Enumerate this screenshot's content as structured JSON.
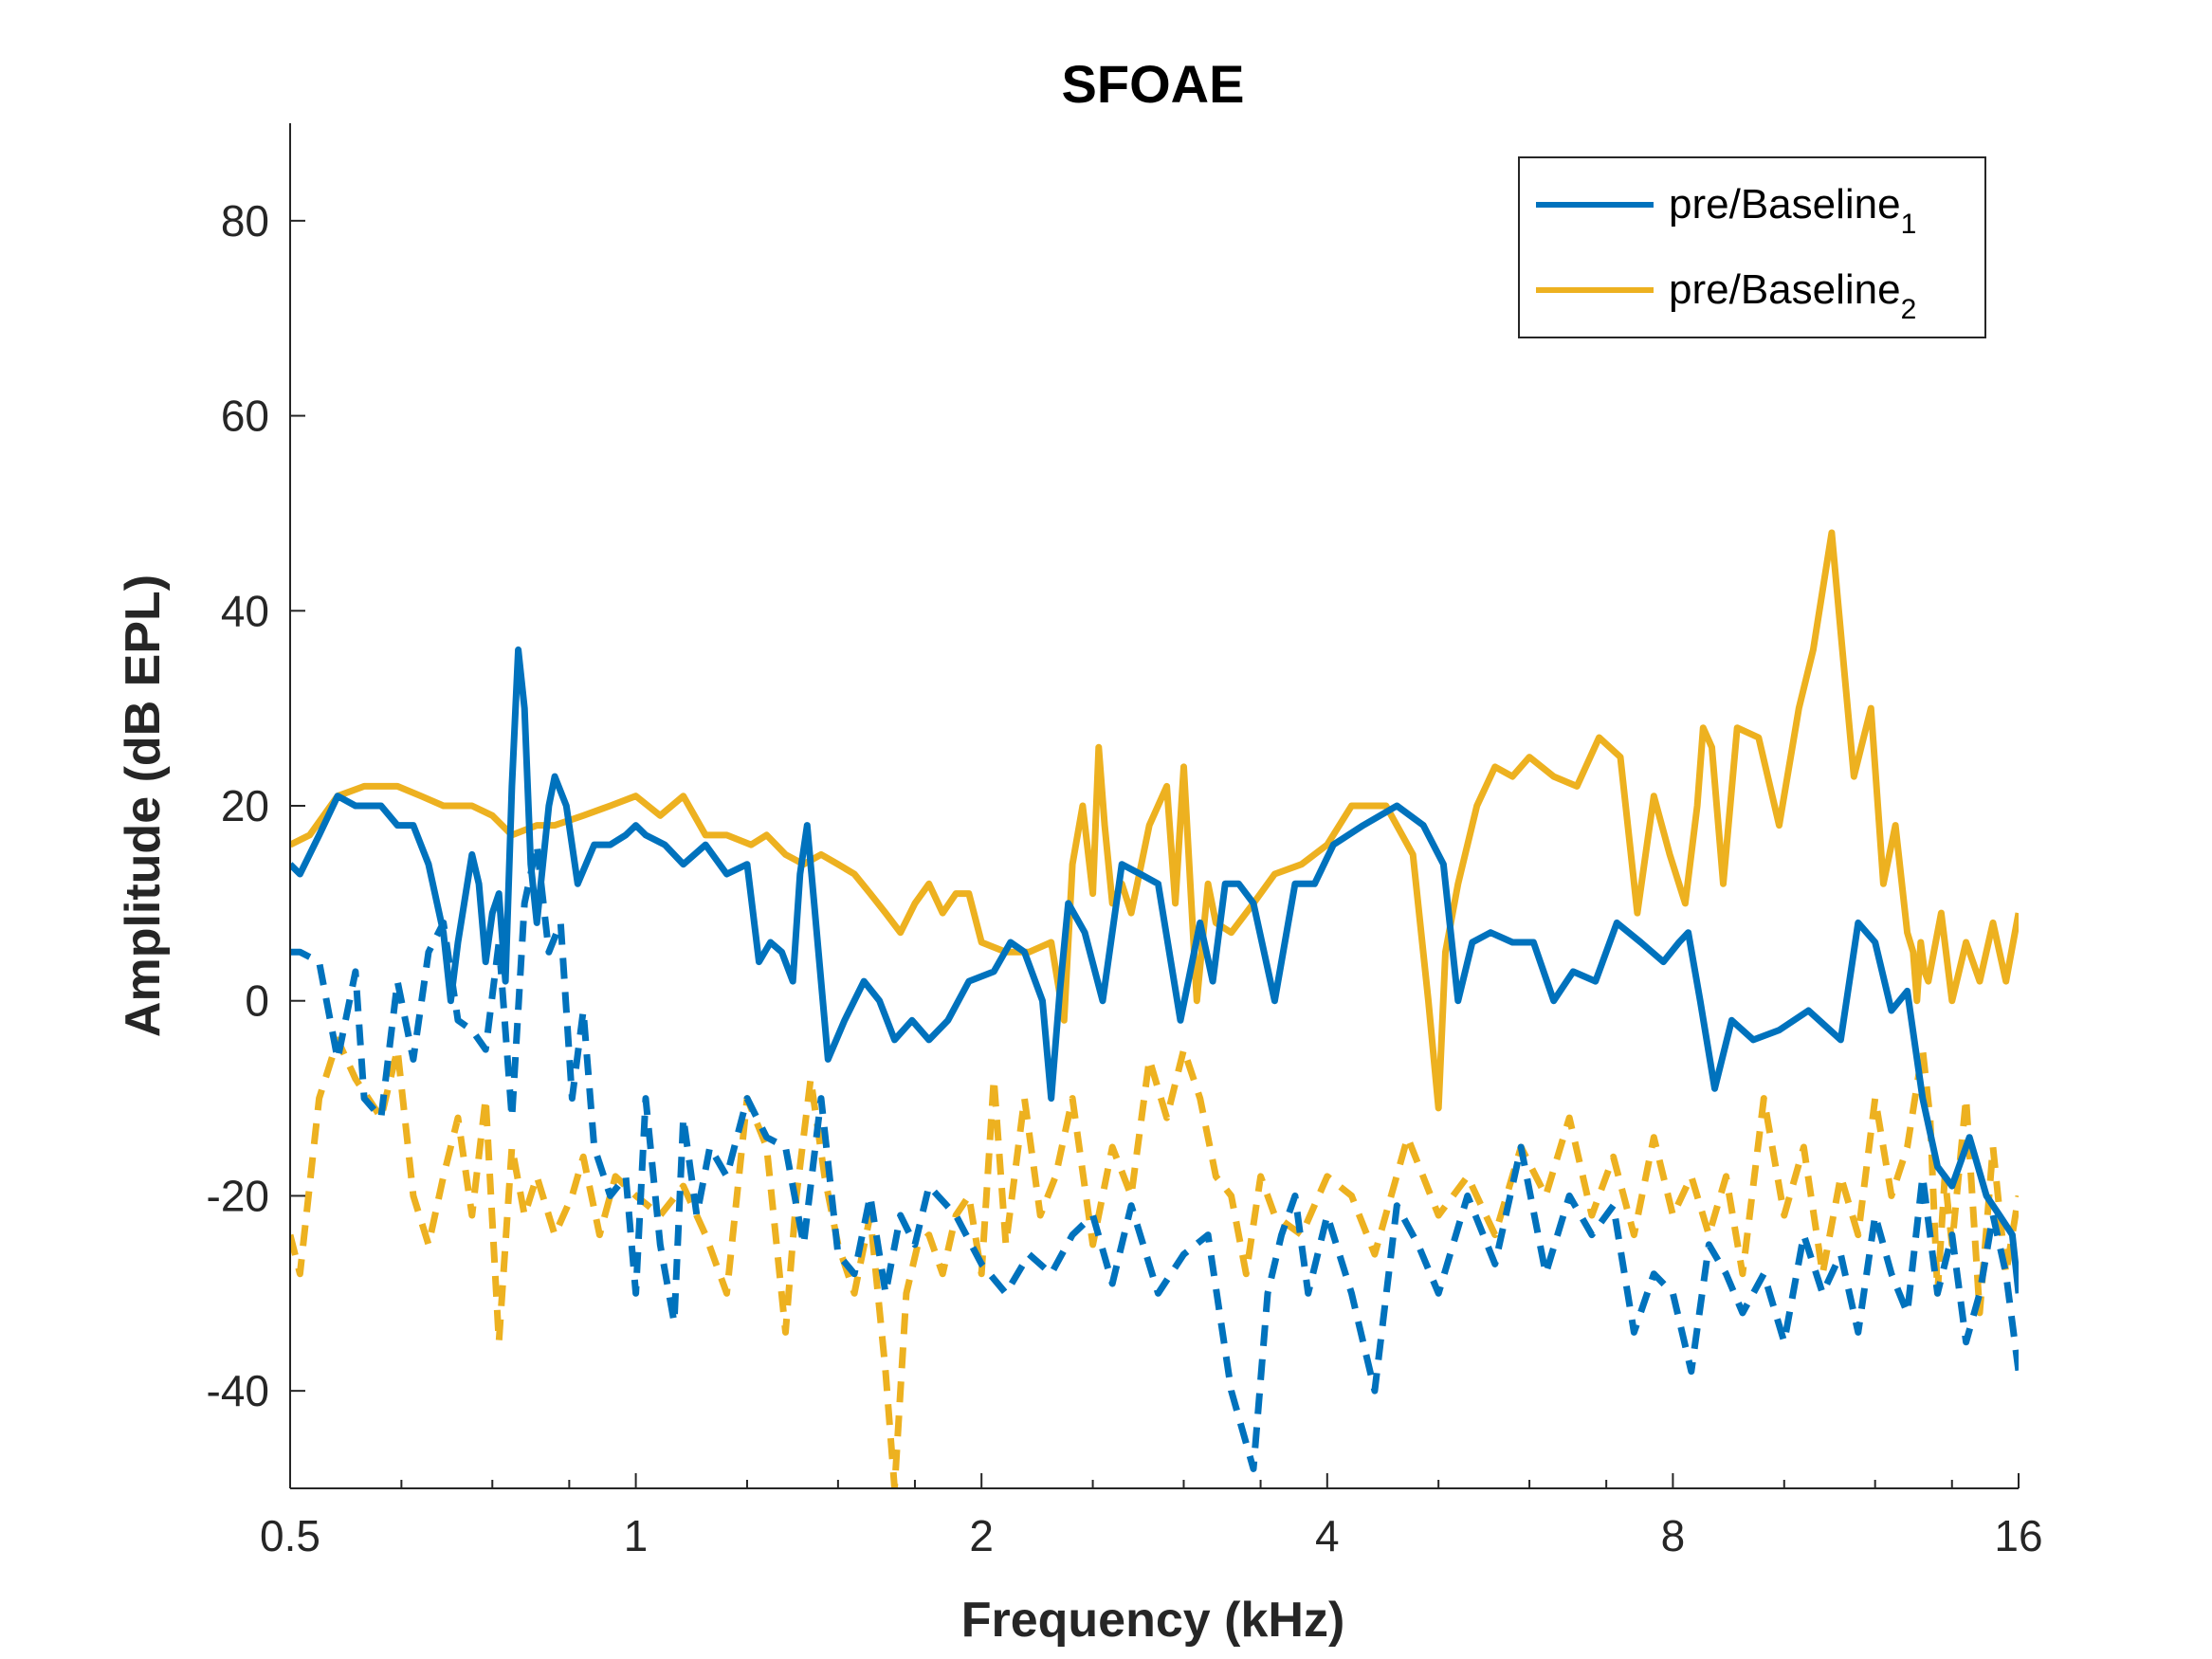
{
  "chart_data": {
    "type": "line",
    "title": "SFOAE",
    "xlabel": "Frequency (kHz)",
    "ylabel": "Amplitude (dB EPL)",
    "x_scale": "log2",
    "xlim": [
      0.5,
      16
    ],
    "ylim": [
      -50,
      90
    ],
    "x_ticks": [
      0.5,
      1,
      2,
      4,
      8,
      16
    ],
    "x_tick_labels": [
      "0.5",
      "1",
      "2",
      "4",
      "8",
      "16"
    ],
    "y_ticks": [
      -40,
      -20,
      0,
      20,
      40,
      60,
      80
    ],
    "y_tick_labels": [
      "-40",
      "-20",
      "0",
      "20",
      "40",
      "60",
      "80"
    ],
    "grid": false,
    "legend_position": "top-right",
    "legend": [
      {
        "base": "pre/Baseline",
        "sub": "1",
        "color": "#0072BD"
      },
      {
        "base": "pre/Baseline",
        "sub": "2",
        "color": "#EDB120"
      }
    ],
    "series": [
      {
        "legend_index": 0,
        "color": "#0072BD",
        "style": "solid",
        "x": [
          0.5,
          0.51,
          0.53,
          0.55,
          0.57,
          0.6,
          0.62,
          0.64,
          0.66,
          0.68,
          0.69,
          0.7,
          0.72,
          0.73,
          0.74,
          0.75,
          0.76,
          0.77,
          0.78,
          0.79,
          0.8,
          0.81,
          0.82,
          0.84,
          0.85,
          0.87,
          0.89,
          0.92,
          0.95,
          0.98,
          1.0,
          1.02,
          1.06,
          1.1,
          1.15,
          1.2,
          1.25,
          1.28,
          1.31,
          1.34,
          1.37,
          1.39,
          1.41,
          1.43,
          1.47,
          1.52,
          1.58,
          1.63,
          1.68,
          1.74,
          1.8,
          1.87,
          1.95,
          2.05,
          2.12,
          2.18,
          2.26,
          2.3,
          2.34,
          2.38,
          2.46,
          2.55,
          2.65,
          2.75,
          2.85,
          2.98,
          3.1,
          3.18,
          3.26,
          3.35,
          3.45,
          3.6,
          3.75,
          3.9,
          4.05,
          4.3,
          4.6,
          4.85,
          5.05,
          5.2,
          5.35,
          5.55,
          5.8,
          6.05,
          6.3,
          6.55,
          6.85,
          7.15,
          7.5,
          7.85,
          8.1,
          8.25,
          8.45,
          8.7,
          9.0,
          9.4,
          9.9,
          10.5,
          11.2,
          11.6,
          12.0,
          12.4,
          12.8,
          13.2,
          13.6,
          14.0,
          14.5,
          15.0,
          15.4,
          15.8,
          16.0
        ],
        "y": [
          14,
          13,
          17,
          21,
          20,
          20,
          18,
          18,
          14,
          7,
          0,
          6,
          15,
          12,
          4,
          9,
          11,
          2,
          22,
          36,
          30,
          14,
          8,
          20,
          23,
          20,
          12,
          16,
          16,
          17,
          18,
          17,
          16,
          14,
          16,
          13,
          14,
          4,
          6,
          5,
          2,
          13,
          18,
          10,
          -6,
          -2,
          2,
          0,
          -4,
          -2,
          -4,
          -2,
          2,
          3,
          6,
          5,
          0,
          -10,
          1,
          10,
          7,
          0,
          14,
          13,
          12,
          -2,
          8,
          2,
          12,
          12,
          10,
          0,
          12,
          12,
          16,
          18,
          20,
          18,
          14,
          0,
          6,
          7,
          6,
          6,
          0,
          3,
          2,
          8,
          6,
          4,
          6,
          7,
          0,
          -9,
          -2,
          -4,
          -3,
          -1,
          -4,
          8,
          6,
          -1,
          1,
          -10,
          -17,
          -19,
          -14,
          -20,
          -22,
          -24,
          -30
        ]
      },
      {
        "legend_index": null,
        "color": "#0072BD",
        "style": "dashed",
        "x": [
          0.5,
          0.51,
          0.53,
          0.55,
          0.57,
          0.58,
          0.6,
          0.62,
          0.64,
          0.66,
          0.68,
          0.7,
          0.72,
          0.74,
          0.76,
          0.78,
          0.8,
          0.82,
          0.84,
          0.86,
          0.88,
          0.9,
          0.92,
          0.95,
          0.98,
          1.0,
          1.02,
          1.05,
          1.08,
          1.1,
          1.13,
          1.16,
          1.2,
          1.25,
          1.3,
          1.35,
          1.4,
          1.45,
          1.5,
          1.55,
          1.6,
          1.65,
          1.7,
          1.75,
          1.8,
          1.9,
          2.0,
          2.1,
          2.2,
          2.3,
          2.4,
          2.5,
          2.6,
          2.7,
          2.85,
          3.0,
          3.15,
          3.3,
          3.45,
          3.55,
          3.65,
          3.75,
          3.85,
          4.0,
          4.2,
          4.4,
          4.6,
          4.8,
          5.0,
          5.3,
          5.6,
          5.9,
          6.2,
          6.5,
          6.8,
          7.1,
          7.4,
          7.7,
          8.0,
          8.3,
          8.6,
          8.9,
          9.2,
          9.6,
          10.0,
          10.4,
          10.8,
          11.2,
          11.6,
          12.0,
          12.4,
          12.8,
          13.2,
          13.6,
          14.0,
          14.4,
          14.8,
          15.2,
          15.6,
          16.0
        ],
        "y": [
          5,
          5,
          4,
          -6,
          3,
          -10,
          -12,
          2,
          -6,
          5,
          8,
          -2,
          -3,
          -5,
          6,
          -12,
          10,
          16,
          5,
          8,
          -10,
          -1,
          -15,
          -20,
          -18,
          -30,
          -10,
          -25,
          -33,
          -12,
          -22,
          -15,
          -18,
          -10,
          -14,
          -15,
          -25,
          -10,
          -26,
          -28,
          -20,
          -30,
          -22,
          -25,
          -19,
          -22,
          -27,
          -30,
          -26,
          -28,
          -24,
          -22,
          -29,
          -21,
          -30,
          -26,
          -24,
          -40,
          -48,
          -30,
          -24,
          -20,
          -30,
          -22,
          -30,
          -40,
          -21,
          -25,
          -30,
          -20,
          -27,
          -15,
          -28,
          -20,
          -24,
          -21,
          -34,
          -28,
          -30,
          -38,
          -25,
          -28,
          -32,
          -28,
          -35,
          -24,
          -30,
          -26,
          -34,
          -22,
          -28,
          -32,
          -18,
          -30,
          -24,
          -35,
          -30,
          -22,
          -28,
          -38
        ]
      },
      {
        "legend_index": 1,
        "color": "#EDB120",
        "style": "solid",
        "x": [
          0.5,
          0.52,
          0.55,
          0.58,
          0.62,
          0.65,
          0.68,
          0.72,
          0.75,
          0.78,
          0.82,
          0.85,
          0.9,
          0.95,
          1.0,
          1.05,
          1.1,
          1.15,
          1.2,
          1.26,
          1.3,
          1.35,
          1.4,
          1.45,
          1.5,
          1.55,
          1.6,
          1.65,
          1.7,
          1.75,
          1.8,
          1.85,
          1.9,
          1.95,
          2.0,
          2.1,
          2.2,
          2.3,
          2.36,
          2.4,
          2.45,
          2.5,
          2.53,
          2.56,
          2.6,
          2.65,
          2.7,
          2.8,
          2.9,
          2.95,
          3.0,
          3.08,
          3.15,
          3.2,
          3.3,
          3.45,
          3.6,
          3.8,
          4.0,
          4.2,
          4.5,
          4.75,
          4.9,
          5.0,
          5.07,
          5.2,
          5.4,
          5.6,
          5.8,
          6.0,
          6.3,
          6.6,
          6.9,
          7.2,
          7.45,
          7.7,
          7.95,
          8.2,
          8.4,
          8.5,
          8.65,
          8.85,
          9.1,
          9.5,
          9.9,
          10.3,
          10.6,
          11.0,
          11.5,
          11.9,
          12.2,
          12.5,
          12.8,
          12.95,
          13.05,
          13.15,
          13.25,
          13.35,
          13.5,
          13.7,
          14.0,
          14.4,
          14.8,
          15.2,
          15.6,
          16.0
        ],
        "y": [
          16,
          17,
          21,
          22,
          22,
          21,
          20,
          20,
          19,
          17,
          18,
          18,
          19,
          20,
          21,
          19,
          21,
          17,
          17,
          16,
          17,
          15,
          14,
          15,
          14,
          13,
          11,
          9,
          7,
          10,
          12,
          9,
          11,
          11,
          6,
          5,
          5,
          6,
          -2,
          14,
          20,
          11,
          26,
          18,
          10,
          12,
          9,
          18,
          22,
          10,
          24,
          0,
          12,
          8,
          7,
          10,
          13,
          14,
          16,
          20,
          20,
          15,
          0,
          -11,
          5,
          12,
          20,
          24,
          23,
          25,
          23,
          22,
          27,
          25,
          9,
          21,
          15,
          10,
          20,
          28,
          26,
          12,
          28,
          27,
          18,
          30,
          36,
          48,
          23,
          30,
          12,
          18,
          7,
          5,
          0,
          6,
          3,
          2,
          5,
          9,
          0,
          6,
          2,
          8,
          2,
          9
        ]
      },
      {
        "legend_index": null,
        "color": "#EDB120",
        "style": "dashed",
        "x": [
          0.5,
          0.51,
          0.53,
          0.55,
          0.57,
          0.6,
          0.62,
          0.64,
          0.66,
          0.68,
          0.7,
          0.72,
          0.74,
          0.76,
          0.78,
          0.8,
          0.82,
          0.85,
          0.88,
          0.9,
          0.93,
          0.96,
          1.0,
          1.05,
          1.1,
          1.15,
          1.2,
          1.25,
          1.3,
          1.35,
          1.38,
          1.42,
          1.46,
          1.5,
          1.55,
          1.6,
          1.65,
          1.68,
          1.72,
          1.76,
          1.8,
          1.85,
          1.9,
          1.95,
          2.0,
          2.05,
          2.1,
          2.18,
          2.25,
          2.32,
          2.4,
          2.5,
          2.6,
          2.7,
          2.8,
          2.9,
          3.0,
          3.1,
          3.2,
          3.3,
          3.4,
          3.5,
          3.6,
          3.8,
          4.0,
          4.2,
          4.4,
          4.7,
          5.0,
          5.3,
          5.6,
          5.9,
          6.2,
          6.5,
          6.8,
          7.1,
          7.4,
          7.7,
          8.0,
          8.3,
          8.6,
          8.9,
          9.2,
          9.6,
          10.0,
          10.4,
          10.8,
          11.2,
          11.6,
          12.0,
          12.4,
          12.8,
          13.2,
          13.4,
          13.6,
          13.8,
          14.0,
          14.4,
          14.8,
          15.2,
          15.6,
          16.0
        ],
        "y": [
          -24,
          -28,
          -10,
          -4,
          -8,
          -12,
          -5,
          -20,
          -25,
          -18,
          -12,
          -22,
          -10,
          -35,
          -15,
          -22,
          -18,
          -24,
          -20,
          -16,
          -24,
          -18,
          -20,
          -22,
          -19,
          -24,
          -30,
          -10,
          -15,
          -34,
          -20,
          -8,
          -18,
          -25,
          -30,
          -22,
          -38,
          -50,
          -30,
          -25,
          -24,
          -28,
          -22,
          -20,
          -28,
          -8,
          -25,
          -10,
          -22,
          -18,
          -10,
          -25,
          -15,
          -20,
          -6,
          -12,
          -5,
          -10,
          -18,
          -20,
          -28,
          -18,
          -22,
          -24,
          -18,
          -20,
          -26,
          -14,
          -22,
          -18,
          -24,
          -15,
          -20,
          -12,
          -22,
          -16,
          -24,
          -14,
          -22,
          -18,
          -24,
          -18,
          -28,
          -10,
          -22,
          -15,
          -28,
          -18,
          -24,
          -10,
          -20,
          -15,
          -5,
          -12,
          -30,
          -18,
          -25,
          -10,
          -32,
          -15,
          -28,
          -20
        ]
      }
    ]
  }
}
